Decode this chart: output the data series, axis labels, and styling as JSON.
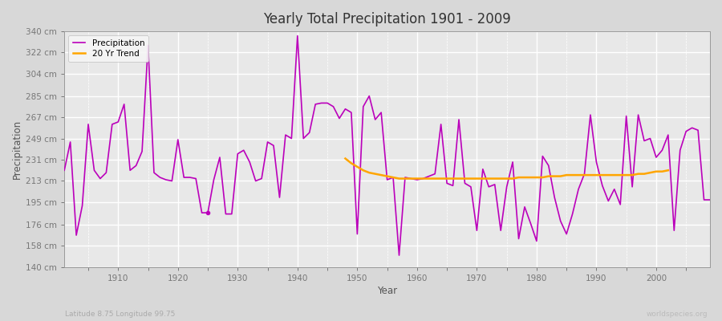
{
  "title": "Yearly Total Precipitation 1901 - 2009",
  "xlabel": "Year",
  "ylabel": "Precipitation",
  "subtitle": "Latitude 8.75 Longitude 99.75",
  "watermark": "worldspecies.org",
  "bg_color": "#d8d8d8",
  "plot_bg_color": "#e8e8e8",
  "grid_color": "#ffffff",
  "precip_color": "#bb00bb",
  "trend_color": "#ffa500",
  "ylim": [
    140,
    340
  ],
  "yticks": [
    140,
    158,
    176,
    195,
    213,
    231,
    249,
    267,
    285,
    304,
    322,
    340
  ],
  "ytick_labels": [
    "140 cm",
    "158 cm",
    "176 cm",
    "195 cm",
    "213 cm",
    "231 cm",
    "249 cm",
    "267 cm",
    "285 cm",
    "304 cm",
    "322 cm",
    "340 cm"
  ],
  "years": [
    1901,
    1902,
    1903,
    1904,
    1905,
    1906,
    1907,
    1908,
    1909,
    1910,
    1911,
    1912,
    1913,
    1914,
    1915,
    1916,
    1917,
    1918,
    1919,
    1920,
    1921,
    1922,
    1923,
    1924,
    1925,
    1926,
    1927,
    1928,
    1929,
    1930,
    1931,
    1932,
    1933,
    1934,
    1935,
    1936,
    1937,
    1938,
    1939,
    1940,
    1941,
    1942,
    1943,
    1944,
    1945,
    1946,
    1947,
    1948,
    1949,
    1950,
    1951,
    1952,
    1953,
    1954,
    1955,
    1956,
    1957,
    1958,
    1959,
    1960,
    1961,
    1962,
    1963,
    1964,
    1965,
    1966,
    1967,
    1968,
    1969,
    1970,
    1971,
    1972,
    1973,
    1974,
    1975,
    1976,
    1977,
    1978,
    1979,
    1980,
    1981,
    1982,
    1983,
    1984,
    1985,
    1986,
    1987,
    1988,
    1989,
    1990,
    1991,
    1992,
    1993,
    1994,
    1995,
    1996,
    1997,
    1998,
    1999,
    2000,
    2001,
    2002,
    2003,
    2004,
    2005,
    2006,
    2007,
    2008,
    2009
  ],
  "precip": [
    222,
    246,
    167,
    192,
    261,
    222,
    215,
    220,
    261,
    263,
    278,
    222,
    226,
    238,
    328,
    220,
    216,
    214,
    213,
    248,
    216,
    216,
    215,
    186,
    186,
    214,
    233,
    185,
    185,
    236,
    239,
    229,
    213,
    215,
    246,
    243,
    199,
    252,
    249,
    336,
    249,
    254,
    278,
    279,
    279,
    276,
    266,
    274,
    271,
    168,
    276,
    285,
    265,
    271,
    214,
    216,
    150,
    216,
    215,
    214,
    215,
    217,
    219,
    261,
    211,
    209,
    265,
    211,
    208,
    171,
    223,
    208,
    210,
    171,
    208,
    229,
    164,
    191,
    177,
    162,
    234,
    226,
    199,
    179,
    168,
    185,
    206,
    219,
    269,
    229,
    209,
    196,
    206,
    193,
    268,
    208,
    269,
    247,
    249,
    233,
    239,
    252,
    171,
    239,
    255,
    258,
    256,
    197,
    197
  ],
  "trend_start_year": 1948,
  "trend_end_year": 2002,
  "trend_values": [
    232,
    228,
    225,
    222,
    220,
    219,
    218,
    217,
    216,
    215,
    215,
    215,
    215,
    215,
    215,
    215,
    215,
    215,
    215,
    215,
    215,
    215,
    215,
    215,
    215,
    215,
    215,
    215,
    215,
    216,
    216,
    216,
    216,
    216,
    217,
    217,
    217,
    218,
    218,
    218,
    218,
    218,
    218,
    218,
    218,
    218,
    218,
    218,
    218,
    219,
    219,
    220,
    221,
    221,
    222
  ],
  "dot_year": 1925,
  "dot_val": 186,
  "xlim_left": 1901,
  "xlim_right": 2009
}
